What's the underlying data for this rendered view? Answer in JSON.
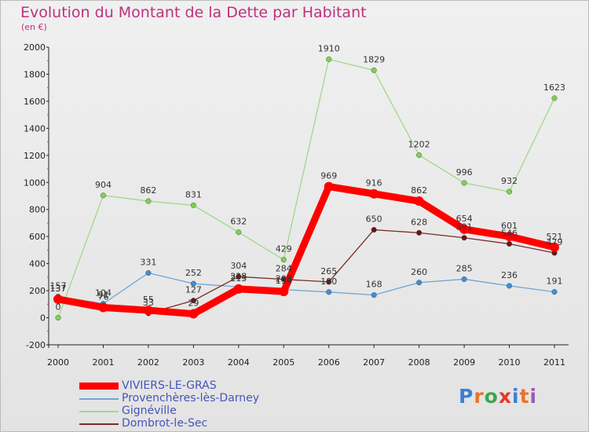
{
  "title": "Evolution du Montant de la Dette par Habitant",
  "subtitle": "(en €)",
  "logo_text": "Proxiti",
  "chart_data": {
    "type": "line",
    "title": "Evolution du Montant de la Dette par Habitant",
    "subtitle": "(en €)",
    "xlabel": "",
    "ylabel": "",
    "x": [
      "2000",
      "2001",
      "2002",
      "2003",
      "2004",
      "2005",
      "2006",
      "2007",
      "2008",
      "2009",
      "2010",
      "2011"
    ],
    "ylim": [
      -200,
      2000
    ],
    "yticks": [
      -200,
      0,
      200,
      400,
      600,
      800,
      1000,
      1200,
      1400,
      1600,
      1800,
      2000
    ],
    "grid": false,
    "legend_position": "bottom-left",
    "series": [
      {
        "name": "VIVIERS-LE-GRAS",
        "color": "#ff0000",
        "values": [
          137,
          76,
          55,
          29,
          213,
          194,
          969,
          916,
          862,
          654,
          601,
          521
        ]
      },
      {
        "name": "Provenchères-lès-Darney",
        "color": "#6fa6d6",
        "values": [
          157,
          104,
          331,
          252,
          228,
          208,
          190,
          168,
          260,
          285,
          236,
          191
        ]
      },
      {
        "name": "Gignéville",
        "color": "#9fd98a",
        "values": [
          0,
          904,
          862,
          831,
          632,
          429,
          1910,
          1829,
          1202,
          996,
          932,
          1623
        ]
      },
      {
        "name": "Dombrot-le-Sec",
        "color": "#7b2b2b",
        "values": [
          137,
          91,
          33,
          127,
          304,
          284,
          265,
          650,
          628,
          591,
          546,
          479
        ]
      }
    ]
  }
}
